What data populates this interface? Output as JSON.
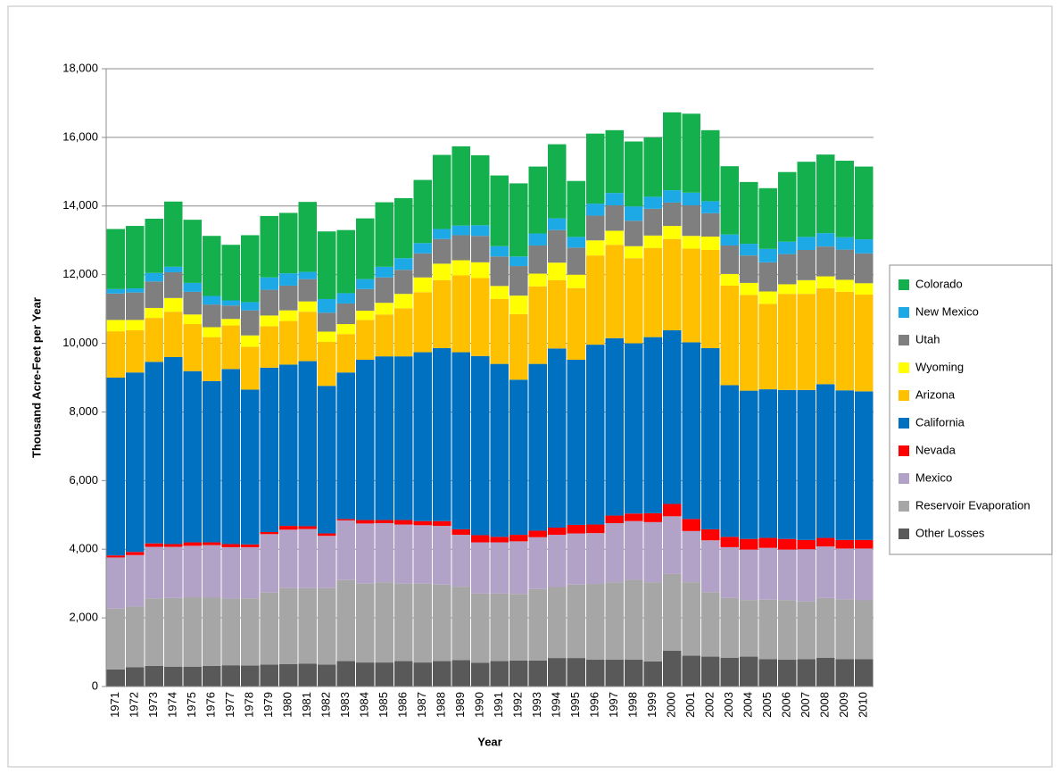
{
  "chart_data": {
    "type": "stacked-bar",
    "x_label": "Year",
    "y_label": "Thousand Acre-Feet per Year",
    "categories": [
      "1971",
      "1972",
      "1973",
      "1974",
      "1975",
      "1976",
      "1977",
      "1978",
      "1979",
      "1980",
      "1981",
      "1982",
      "1983",
      "1984",
      "1985",
      "1986",
      "1987",
      "1988",
      "1989",
      "1990",
      "1991",
      "1992",
      "1993",
      "1994",
      "1995",
      "1996",
      "1997",
      "1998",
      "1999",
      "2000",
      "2001",
      "2002",
      "2003",
      "2004",
      "2005",
      "2006",
      "2007",
      "2008",
      "2009",
      "2010"
    ],
    "ylim": [
      0,
      18000
    ],
    "yticks": [
      0,
      {
        "value": 2000,
        "label": "2,000"
      },
      {
        "value": 4000,
        "label": "4,000"
      },
      {
        "value": 6000,
        "label": "6,000"
      },
      {
        "value": 8000,
        "label": "8,000"
      },
      {
        "value": 10000,
        "label": "10,000"
      },
      {
        "value": 12000,
        "label": "12,000"
      },
      {
        "value": 14000,
        "label": "14,000"
      },
      {
        "value": 16000,
        "label": "16,000"
      },
      {
        "value": 18000,
        "label": "18,000"
      }
    ],
    "grid": true,
    "legend": "right",
    "series": [
      {
        "name": "Other Losses",
        "color": "#595959",
        "values": [
          500,
          560,
          600,
          580,
          580,
          600,
          620,
          610,
          640,
          650,
          670,
          640,
          740,
          700,
          700,
          740,
          700,
          740,
          770,
          690,
          740,
          760,
          760,
          830,
          830,
          780,
          780,
          780,
          730,
          1040,
          900,
          870,
          840,
          870,
          800,
          780,
          800,
          840,
          800,
          800
        ]
      },
      {
        "name": "Reservoir Evaporation",
        "color": "#a6a6a6",
        "values": [
          1770,
          1770,
          1970,
          2000,
          2020,
          2000,
          1940,
          1960,
          2100,
          2220,
          2200,
          2230,
          2360,
          2300,
          2340,
          2260,
          2300,
          2230,
          2140,
          2020,
          1970,
          1940,
          2080,
          2070,
          2140,
          2210,
          2260,
          2330,
          2310,
          2240,
          2140,
          1880,
          1740,
          1650,
          1730,
          1740,
          1680,
          1740,
          1740,
          1710
        ]
      },
      {
        "name": "Mexico",
        "color": "#b3a2c7",
        "values": [
          1490,
          1500,
          1500,
          1490,
          1500,
          1520,
          1500,
          1490,
          1700,
          1700,
          1720,
          1520,
          1740,
          1750,
          1720,
          1720,
          1700,
          1710,
          1510,
          1490,
          1490,
          1530,
          1510,
          1520,
          1490,
          1480,
          1720,
          1710,
          1750,
          1680,
          1490,
          1510,
          1480,
          1470,
          1510,
          1470,
          1520,
          1500,
          1480,
          1510
        ]
      },
      {
        "name": "Nevada",
        "color": "#ff0000",
        "values": [
          60,
          90,
          100,
          80,
          100,
          80,
          90,
          80,
          60,
          110,
          80,
          70,
          40,
          100,
          90,
          130,
          120,
          140,
          160,
          210,
          160,
          190,
          190,
          210,
          250,
          250,
          220,
          220,
          260,
          360,
          350,
          320,
          300,
          310,
          290,
          310,
          270,
          250,
          250,
          250
        ]
      },
      {
        "name": "California",
        "color": "#0070c0",
        "values": [
          5180,
          5230,
          5290,
          5450,
          4990,
          4700,
          5100,
          4510,
          4790,
          4700,
          4810,
          4300,
          4270,
          4670,
          4770,
          4770,
          4920,
          5040,
          5160,
          5220,
          5040,
          4520,
          4860,
          5220,
          4810,
          5240,
          5170,
          4960,
          5130,
          5060,
          5150,
          5280,
          4420,
          4320,
          4330,
          4340,
          4370,
          4480,
          4360,
          4330
        ]
      },
      {
        "name": "Arizona",
        "color": "#ffc000",
        "values": [
          1350,
          1230,
          1280,
          1320,
          1370,
          1280,
          1270,
          1250,
          1210,
          1270,
          1440,
          1280,
          1120,
          1160,
          1220,
          1400,
          1750,
          1980,
          2240,
          2270,
          1890,
          1910,
          2260,
          1990,
          2090,
          2600,
          2720,
          2480,
          2600,
          2660,
          2730,
          2860,
          2900,
          2790,
          2490,
          2800,
          2800,
          2790,
          2870,
          2820
        ]
      },
      {
        "name": "Wyoming",
        "color": "#ffff00",
        "values": [
          330,
          300,
          290,
          400,
          280,
          290,
          190,
          330,
          310,
          310,
          300,
          300,
          290,
          270,
          340,
          420,
          430,
          480,
          440,
          460,
          380,
          540,
          370,
          510,
          390,
          440,
          410,
          350,
          360,
          380,
          370,
          390,
          340,
          350,
          360,
          280,
          400,
          350,
          350,
          330
        ]
      },
      {
        "name": "Utah",
        "color": "#7f7f7f",
        "values": [
          770,
          800,
          770,
          750,
          660,
          660,
          390,
          730,
          750,
          720,
          650,
          550,
          600,
          630,
          740,
          700,
          700,
          720,
          730,
          770,
          860,
          860,
          820,
          950,
          790,
          720,
          740,
          740,
          780,
          680,
          890,
          680,
          830,
          800,
          850,
          880,
          880,
          870,
          880,
          870
        ]
      },
      {
        "name": "New Mexico",
        "color": "#1ca9e6",
        "values": [
          130,
          120,
          250,
          160,
          260,
          250,
          150,
          240,
          360,
          360,
          210,
          400,
          300,
          290,
          310,
          340,
          300,
          290,
          280,
          310,
          300,
          280,
          350,
          340,
          310,
          350,
          360,
          420,
          350,
          360,
          370,
          350,
          320,
          340,
          390,
          360,
          380,
          390,
          360,
          410
        ]
      },
      {
        "name": "Colorado",
        "color": "#14b04e",
        "values": [
          1750,
          1820,
          1580,
          1900,
          1840,
          1750,
          1620,
          1950,
          1790,
          1760,
          2040,
          1970,
          1840,
          1770,
          1880,
          1750,
          1840,
          2160,
          2310,
          2040,
          2060,
          2130,
          1950,
          2160,
          1630,
          2040,
          1830,
          1890,
          1730,
          2270,
          2300,
          2070,
          1990,
          1800,
          1770,
          2030,
          2190,
          2290,
          2230,
          2120
        ]
      }
    ]
  }
}
